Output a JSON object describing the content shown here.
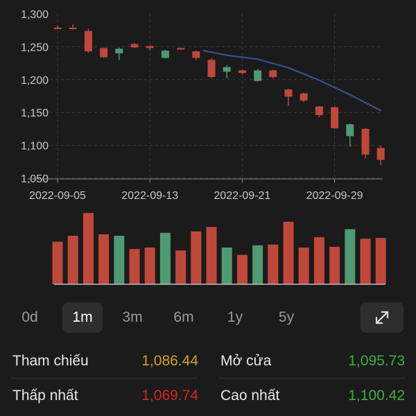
{
  "chart_data": {
    "type": "candlestick",
    "y_ticks": [
      "1,300",
      "1,250",
      "1,200",
      "1,150",
      "1,100",
      "1,050"
    ],
    "ylim": [
      1050,
      1300
    ],
    "x_ticks": [
      "2022-09-05",
      "2022-09-13",
      "2022-09-21",
      "2022-09-29"
    ],
    "grid": true,
    "colors": {
      "up": "#4e9a72",
      "down": "#c0483a",
      "ma_line": "#3b4f8c",
      "grid": "#3a3a3a"
    },
    "candles": [
      {
        "open": 1279,
        "close": 1278,
        "high": 1282,
        "low": 1277,
        "volume": 0.58
      },
      {
        "open": 1279,
        "close": 1278,
        "high": 1284,
        "low": 1276,
        "volume": 0.66
      },
      {
        "open": 1274,
        "close": 1243,
        "high": 1277,
        "low": 1241,
        "volume": 0.97
      },
      {
        "open": 1248,
        "close": 1234,
        "high": 1249,
        "low": 1233,
        "volume": 0.68
      },
      {
        "open": 1240,
        "close": 1247,
        "high": 1249,
        "low": 1230,
        "volume": 0.66
      },
      {
        "open": 1254,
        "close": 1249,
        "high": 1256,
        "low": 1248,
        "volume": 0.48
      },
      {
        "open": 1251,
        "close": 1248,
        "high": 1252,
        "low": 1244,
        "volume": 0.5
      },
      {
        "open": 1233,
        "close": 1244,
        "high": 1245,
        "low": 1232,
        "volume": 0.7
      },
      {
        "open": 1248,
        "close": 1246,
        "high": 1249,
        "low": 1245,
        "volume": 0.46
      },
      {
        "open": 1243,
        "close": 1233,
        "high": 1244,
        "low": 1230,
        "volume": 0.72
      },
      {
        "open": 1230,
        "close": 1204,
        "high": 1232,
        "low": 1202,
        "volume": 0.78
      },
      {
        "open": 1212,
        "close": 1219,
        "high": 1222,
        "low": 1202,
        "volume": 0.5
      },
      {
        "open": 1214,
        "close": 1210,
        "high": 1215,
        "low": 1208,
        "volume": 0.4
      },
      {
        "open": 1198,
        "close": 1214,
        "high": 1216,
        "low": 1197,
        "volume": 0.53
      },
      {
        "open": 1214,
        "close": 1204,
        "high": 1215,
        "low": 1202,
        "volume": 0.54
      },
      {
        "open": 1185,
        "close": 1174,
        "high": 1186,
        "low": 1160,
        "volume": 0.85
      },
      {
        "open": 1179,
        "close": 1168,
        "high": 1180,
        "low": 1166,
        "volume": 0.5
      },
      {
        "open": 1159,
        "close": 1146,
        "high": 1160,
        "low": 1143,
        "volume": 0.64
      },
      {
        "open": 1158,
        "close": 1126,
        "high": 1159,
        "low": 1125,
        "volume": 0.51
      },
      {
        "open": 1114,
        "close": 1132,
        "high": 1133,
        "low": 1098,
        "volume": 0.75
      },
      {
        "open": 1125,
        "close": 1086,
        "high": 1126,
        "low": 1080,
        "volume": 0.62
      },
      {
        "open": 1096,
        "close": 1078,
        "high": 1100,
        "low": 1070,
        "volume": 0.63
      }
    ],
    "ma_line": [
      {
        "from_candle": 9.5,
        "value": 1244
      },
      {
        "from_candle": 11,
        "value": 1237
      },
      {
        "from_candle": 13,
        "value": 1231
      },
      {
        "from_candle": 15,
        "value": 1218
      },
      {
        "from_candle": 17,
        "value": 1199
      },
      {
        "from_candle": 19,
        "value": 1177
      },
      {
        "from_candle": 21,
        "value": 1153
      }
    ]
  },
  "range": {
    "options": [
      "0d",
      "1m",
      "3m",
      "6m",
      "1y",
      "5y"
    ],
    "selected": "1m",
    "expand_icon": "expand-icon"
  },
  "stats": {
    "reference": {
      "label": "Tham chiếu",
      "value": "1,086.44",
      "color": "#d4a11f"
    },
    "open": {
      "label": "Mở cửa",
      "value": "1,095.73",
      "color": "#3fae3f"
    },
    "low": {
      "label": "Thấp nhất",
      "value": "1,069.74",
      "color": "#d0271d"
    },
    "high": {
      "label": "Cao nhất",
      "value": "1,100.42",
      "color": "#3fae3f"
    }
  }
}
